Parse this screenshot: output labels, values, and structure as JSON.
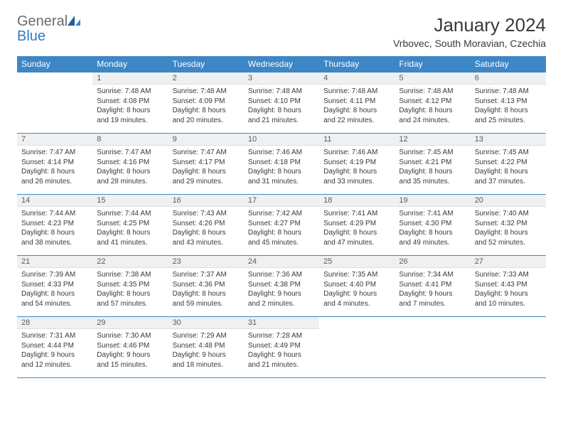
{
  "logo": {
    "word1": "General",
    "word2": "Blue"
  },
  "title": "January 2024",
  "location": "Vrbovec, South Moravian, Czechia",
  "colors": {
    "header_bg": "#3d87c7",
    "header_text": "#ffffff",
    "daynum_bg": "#eef0f1",
    "border": "#3d87c7",
    "text": "#3a3a3a",
    "logo_gray": "#6b6b6b",
    "logo_blue": "#2f7bbf"
  },
  "weekdays": [
    "Sunday",
    "Monday",
    "Tuesday",
    "Wednesday",
    "Thursday",
    "Friday",
    "Saturday"
  ],
  "weeks": [
    [
      {
        "num": "",
        "text": ""
      },
      {
        "num": "1",
        "text": "Sunrise: 7:48 AM\nSunset: 4:08 PM\nDaylight: 8 hours\nand 19 minutes."
      },
      {
        "num": "2",
        "text": "Sunrise: 7:48 AM\nSunset: 4:09 PM\nDaylight: 8 hours\nand 20 minutes."
      },
      {
        "num": "3",
        "text": "Sunrise: 7:48 AM\nSunset: 4:10 PM\nDaylight: 8 hours\nand 21 minutes."
      },
      {
        "num": "4",
        "text": "Sunrise: 7:48 AM\nSunset: 4:11 PM\nDaylight: 8 hours\nand 22 minutes."
      },
      {
        "num": "5",
        "text": "Sunrise: 7:48 AM\nSunset: 4:12 PM\nDaylight: 8 hours\nand 24 minutes."
      },
      {
        "num": "6",
        "text": "Sunrise: 7:48 AM\nSunset: 4:13 PM\nDaylight: 8 hours\nand 25 minutes."
      }
    ],
    [
      {
        "num": "7",
        "text": "Sunrise: 7:47 AM\nSunset: 4:14 PM\nDaylight: 8 hours\nand 26 minutes."
      },
      {
        "num": "8",
        "text": "Sunrise: 7:47 AM\nSunset: 4:16 PM\nDaylight: 8 hours\nand 28 minutes."
      },
      {
        "num": "9",
        "text": "Sunrise: 7:47 AM\nSunset: 4:17 PM\nDaylight: 8 hours\nand 29 minutes."
      },
      {
        "num": "10",
        "text": "Sunrise: 7:46 AM\nSunset: 4:18 PM\nDaylight: 8 hours\nand 31 minutes."
      },
      {
        "num": "11",
        "text": "Sunrise: 7:46 AM\nSunset: 4:19 PM\nDaylight: 8 hours\nand 33 minutes."
      },
      {
        "num": "12",
        "text": "Sunrise: 7:45 AM\nSunset: 4:21 PM\nDaylight: 8 hours\nand 35 minutes."
      },
      {
        "num": "13",
        "text": "Sunrise: 7:45 AM\nSunset: 4:22 PM\nDaylight: 8 hours\nand 37 minutes."
      }
    ],
    [
      {
        "num": "14",
        "text": "Sunrise: 7:44 AM\nSunset: 4:23 PM\nDaylight: 8 hours\nand 38 minutes."
      },
      {
        "num": "15",
        "text": "Sunrise: 7:44 AM\nSunset: 4:25 PM\nDaylight: 8 hours\nand 41 minutes."
      },
      {
        "num": "16",
        "text": "Sunrise: 7:43 AM\nSunset: 4:26 PM\nDaylight: 8 hours\nand 43 minutes."
      },
      {
        "num": "17",
        "text": "Sunrise: 7:42 AM\nSunset: 4:27 PM\nDaylight: 8 hours\nand 45 minutes."
      },
      {
        "num": "18",
        "text": "Sunrise: 7:41 AM\nSunset: 4:29 PM\nDaylight: 8 hours\nand 47 minutes."
      },
      {
        "num": "19",
        "text": "Sunrise: 7:41 AM\nSunset: 4:30 PM\nDaylight: 8 hours\nand 49 minutes."
      },
      {
        "num": "20",
        "text": "Sunrise: 7:40 AM\nSunset: 4:32 PM\nDaylight: 8 hours\nand 52 minutes."
      }
    ],
    [
      {
        "num": "21",
        "text": "Sunrise: 7:39 AM\nSunset: 4:33 PM\nDaylight: 8 hours\nand 54 minutes."
      },
      {
        "num": "22",
        "text": "Sunrise: 7:38 AM\nSunset: 4:35 PM\nDaylight: 8 hours\nand 57 minutes."
      },
      {
        "num": "23",
        "text": "Sunrise: 7:37 AM\nSunset: 4:36 PM\nDaylight: 8 hours\nand 59 minutes."
      },
      {
        "num": "24",
        "text": "Sunrise: 7:36 AM\nSunset: 4:38 PM\nDaylight: 9 hours\nand 2 minutes."
      },
      {
        "num": "25",
        "text": "Sunrise: 7:35 AM\nSunset: 4:40 PM\nDaylight: 9 hours\nand 4 minutes."
      },
      {
        "num": "26",
        "text": "Sunrise: 7:34 AM\nSunset: 4:41 PM\nDaylight: 9 hours\nand 7 minutes."
      },
      {
        "num": "27",
        "text": "Sunrise: 7:33 AM\nSunset: 4:43 PM\nDaylight: 9 hours\nand 10 minutes."
      }
    ],
    [
      {
        "num": "28",
        "text": "Sunrise: 7:31 AM\nSunset: 4:44 PM\nDaylight: 9 hours\nand 12 minutes."
      },
      {
        "num": "29",
        "text": "Sunrise: 7:30 AM\nSunset: 4:46 PM\nDaylight: 9 hours\nand 15 minutes."
      },
      {
        "num": "30",
        "text": "Sunrise: 7:29 AM\nSunset: 4:48 PM\nDaylight: 9 hours\nand 18 minutes."
      },
      {
        "num": "31",
        "text": "Sunrise: 7:28 AM\nSunset: 4:49 PM\nDaylight: 9 hours\nand 21 minutes."
      },
      {
        "num": "",
        "text": ""
      },
      {
        "num": "",
        "text": ""
      },
      {
        "num": "",
        "text": ""
      }
    ]
  ]
}
